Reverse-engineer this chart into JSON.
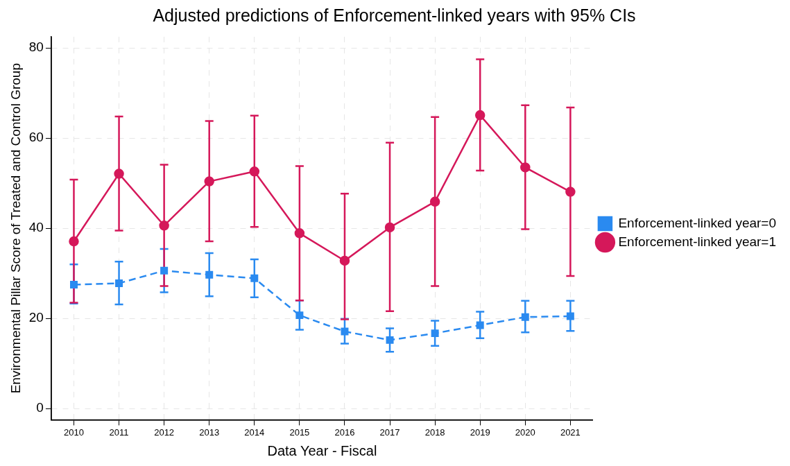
{
  "chart_data": {
    "type": "line",
    "title": "Adjusted predictions of Enforcement-linked years with 95% CIs",
    "xlabel": "Data Year - Fiscal",
    "ylabel": "Environmental Pillar Score of Treated and Control Group",
    "categories": [
      "2010",
      "2011",
      "2012",
      "2013",
      "2014",
      "2015",
      "2016",
      "2017",
      "2018",
      "2019",
      "2020",
      "2021"
    ],
    "series": [
      {
        "name": "Enforcement-linked year=0",
        "color": "#2a8af0",
        "marker": "square",
        "line_style": "dashed",
        "values": [
          27.5,
          27.8,
          30.6,
          29.7,
          28.9,
          20.7,
          17.1,
          15.2,
          16.7,
          18.5,
          20.3,
          20.5
        ],
        "errors": [
          [
            23.3,
            32.0
          ],
          [
            23.1,
            32.6
          ],
          [
            25.8,
            35.4
          ],
          [
            24.9,
            34.5
          ],
          [
            24.7,
            33.1
          ],
          [
            17.5,
            24.0
          ],
          [
            14.4,
            19.9
          ],
          [
            12.6,
            17.8
          ],
          [
            13.9,
            19.5
          ],
          [
            15.6,
            21.5
          ],
          [
            16.9,
            23.9
          ],
          [
            17.2,
            23.9
          ]
        ]
      },
      {
        "name": "Enforcement-linked year=1",
        "color": "#d5185a",
        "marker": "circle",
        "line_style": "solid",
        "values": [
          37.1,
          52.1,
          40.6,
          50.4,
          52.6,
          38.9,
          32.8,
          40.2,
          45.9,
          65.1,
          53.5,
          48.1
        ],
        "errors": [
          [
            23.5,
            50.8
          ],
          [
            39.5,
            64.8
          ],
          [
            27.2,
            54.1
          ],
          [
            37.1,
            63.8
          ],
          [
            40.3,
            65.0
          ],
          [
            24.0,
            53.8
          ],
          [
            19.8,
            47.7
          ],
          [
            21.6,
            59.0
          ],
          [
            27.2,
            64.7
          ],
          [
            52.8,
            77.5
          ],
          [
            39.8,
            67.3
          ],
          [
            29.4,
            66.8
          ]
        ]
      }
    ],
    "ylim": [
      -2.5,
      82.5
    ],
    "yticks": [
      0,
      20,
      40,
      60,
      80
    ],
    "grid": true,
    "legend": "right"
  }
}
